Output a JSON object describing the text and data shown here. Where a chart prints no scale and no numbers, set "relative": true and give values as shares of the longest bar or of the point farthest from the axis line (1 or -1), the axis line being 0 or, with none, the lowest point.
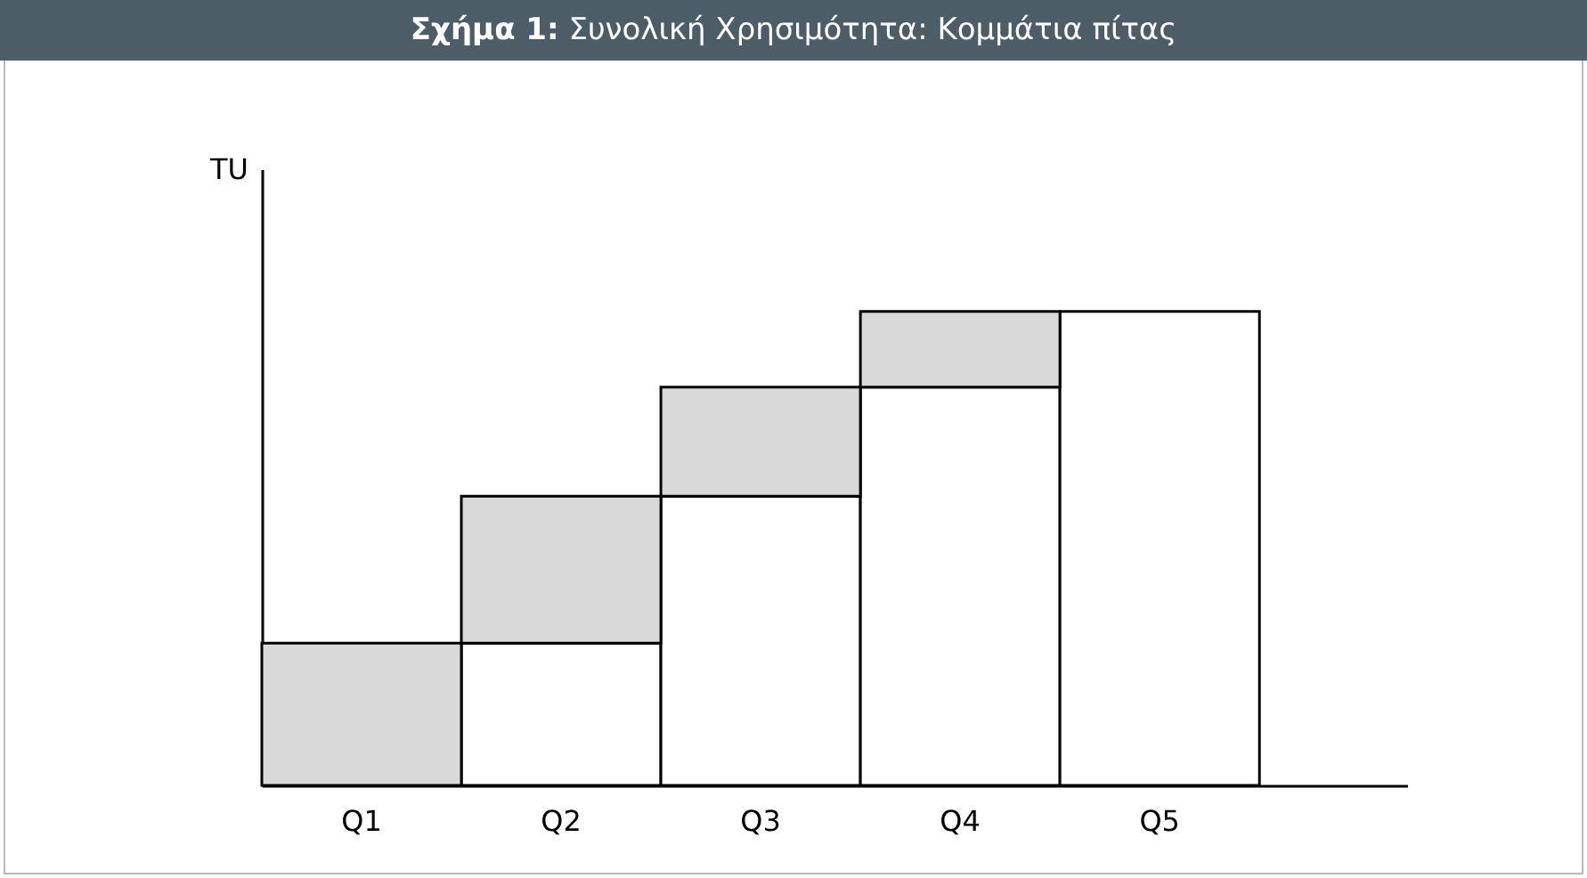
{
  "chart_data": {
    "type": "bar",
    "title": "Σχήμα 1: Συνολική Χρησιμότητα: Κομμάτια πίτας",
    "ylabel": "TU",
    "categories": [
      "Q1",
      "Q2",
      "Q3",
      "Q4",
      "Q5"
    ],
    "relative": true,
    "stacked": true,
    "grid": false,
    "legend": false,
    "series": [
      {
        "color": "#ffffff",
        "values": [
          0,
          0.3,
          0.61,
          0.84,
          1
        ]
      },
      {
        "color": "#d9d9d9",
        "values": [
          0.3,
          0.31,
          0.23,
          0.16,
          null
        ]
      }
    ]
  }
}
